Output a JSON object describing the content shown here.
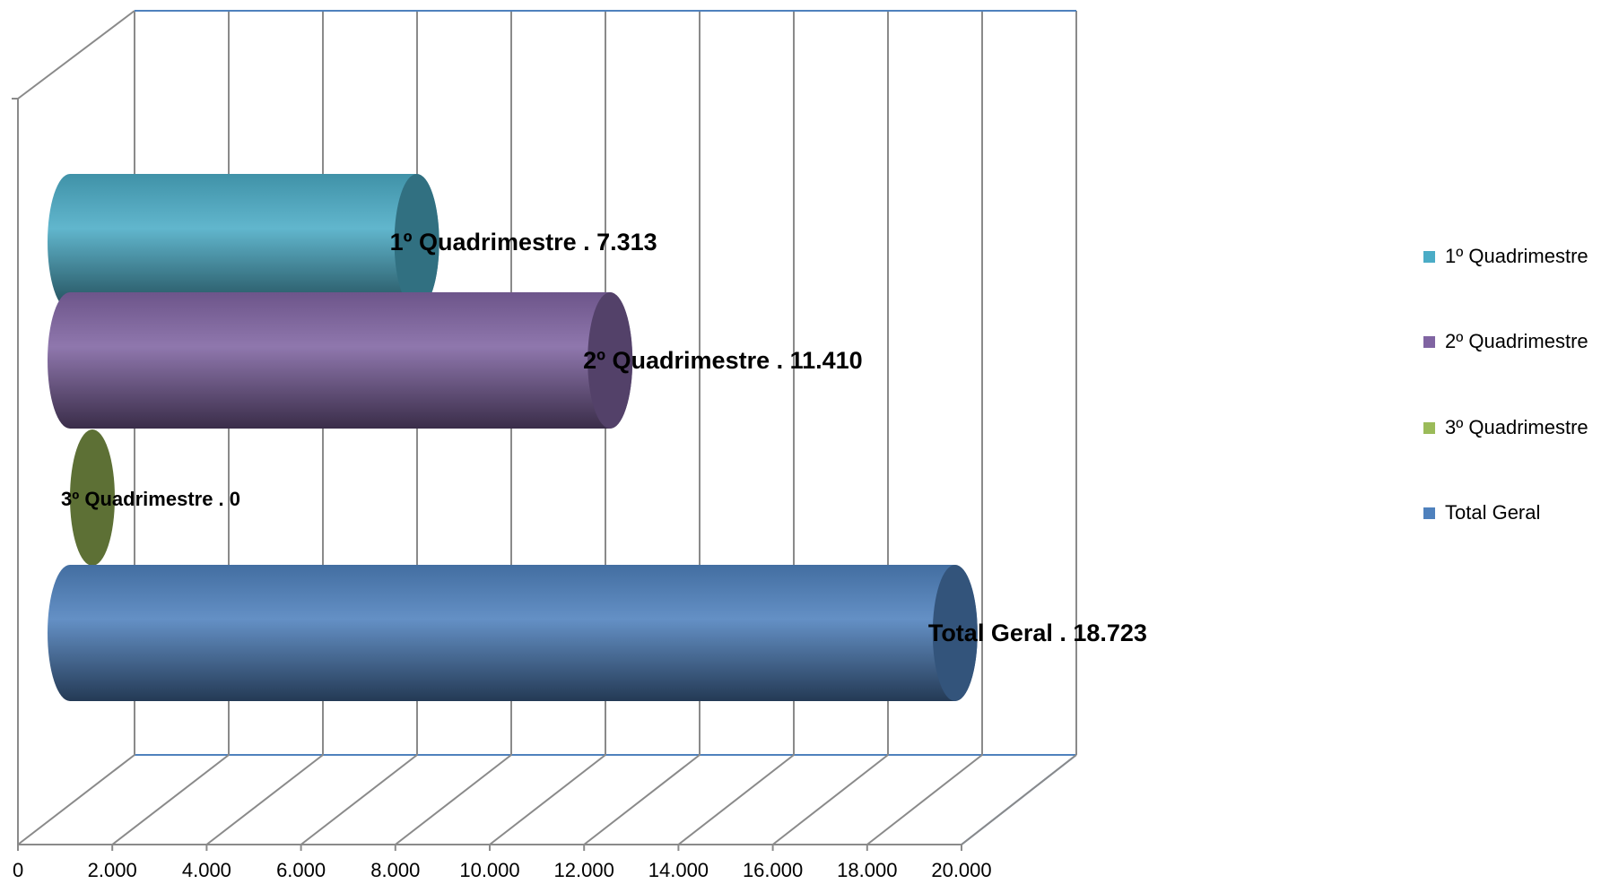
{
  "chart_data": {
    "type": "bar",
    "orientation": "horizontal",
    "style": "3d-cylinder",
    "xlim": [
      0,
      20000
    ],
    "x_ticks": [
      0,
      2000,
      4000,
      6000,
      8000,
      10000,
      12000,
      14000,
      16000,
      18000,
      20000
    ],
    "x_tick_labels": [
      "0",
      "2.000",
      "4.000",
      "6.000",
      "8.000",
      "10.000",
      "12.000",
      "14.000",
      "16.000",
      "18.000",
      "20.000"
    ],
    "grid": true,
    "legend_position": "right",
    "series": [
      {
        "name": "1º Quadrimestre",
        "value": 7313,
        "label": "1º Quadrimestre . 7.313",
        "color": "#4bacc6"
      },
      {
        "name": "2º Quadrimestre",
        "value": 11410,
        "label": "2º Quadrimestre . 11.410",
        "color": "#8064a2"
      },
      {
        "name": "3º Quadrimestre",
        "value": 0,
        "label": "3º Quadrimestre . 0",
        "color": "#9bbb59"
      },
      {
        "name": "Total  Geral",
        "value": 18723,
        "label": "Total  Geral . 18.723",
        "color": "#4f81bd"
      }
    ]
  }
}
